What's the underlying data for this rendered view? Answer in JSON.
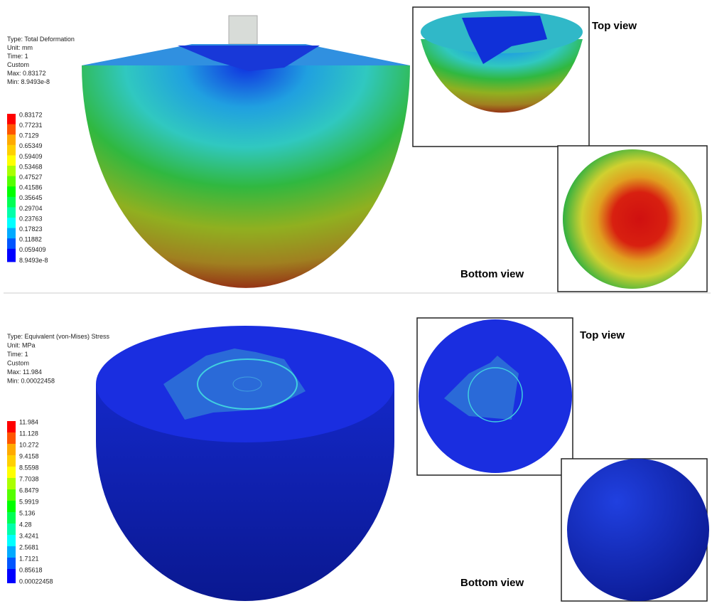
{
  "panels": [
    {
      "info": [
        "Type: Total Deformation",
        "Unit: mm",
        "Time: 1",
        "Custom",
        "Max: 0.83172",
        "Min: 8.9493e-8"
      ],
      "legend": [
        "0.83172",
        "0.77231",
        "0.7129",
        "0.65349",
        "0.59409",
        "0.53468",
        "0.47527",
        "0.41586",
        "0.35645",
        "0.29704",
        "0.23763",
        "0.17823",
        "0.11882",
        "0.059409",
        "8.9493e-8"
      ],
      "top_view_label": "Top view",
      "bottom_view_label": "Bottom view"
    },
    {
      "info": [
        "Type: Equivalent (von-Mises) Stress",
        "Unit: MPa",
        "Time: 1",
        "Custom",
        "Max: 11.984",
        "Min: 0.00022458"
      ],
      "legend": [
        "11.984",
        "11.128",
        "10.272",
        "9.4158",
        "8.5598",
        "7.7038",
        "6.8479",
        "5.9919",
        "5.136",
        "4.28",
        "3.4241",
        "2.5681",
        "1.7121",
        "0.85618",
        "0.00022458"
      ],
      "top_view_label": "Top view",
      "bottom_view_label": "Bottom view"
    }
  ]
}
